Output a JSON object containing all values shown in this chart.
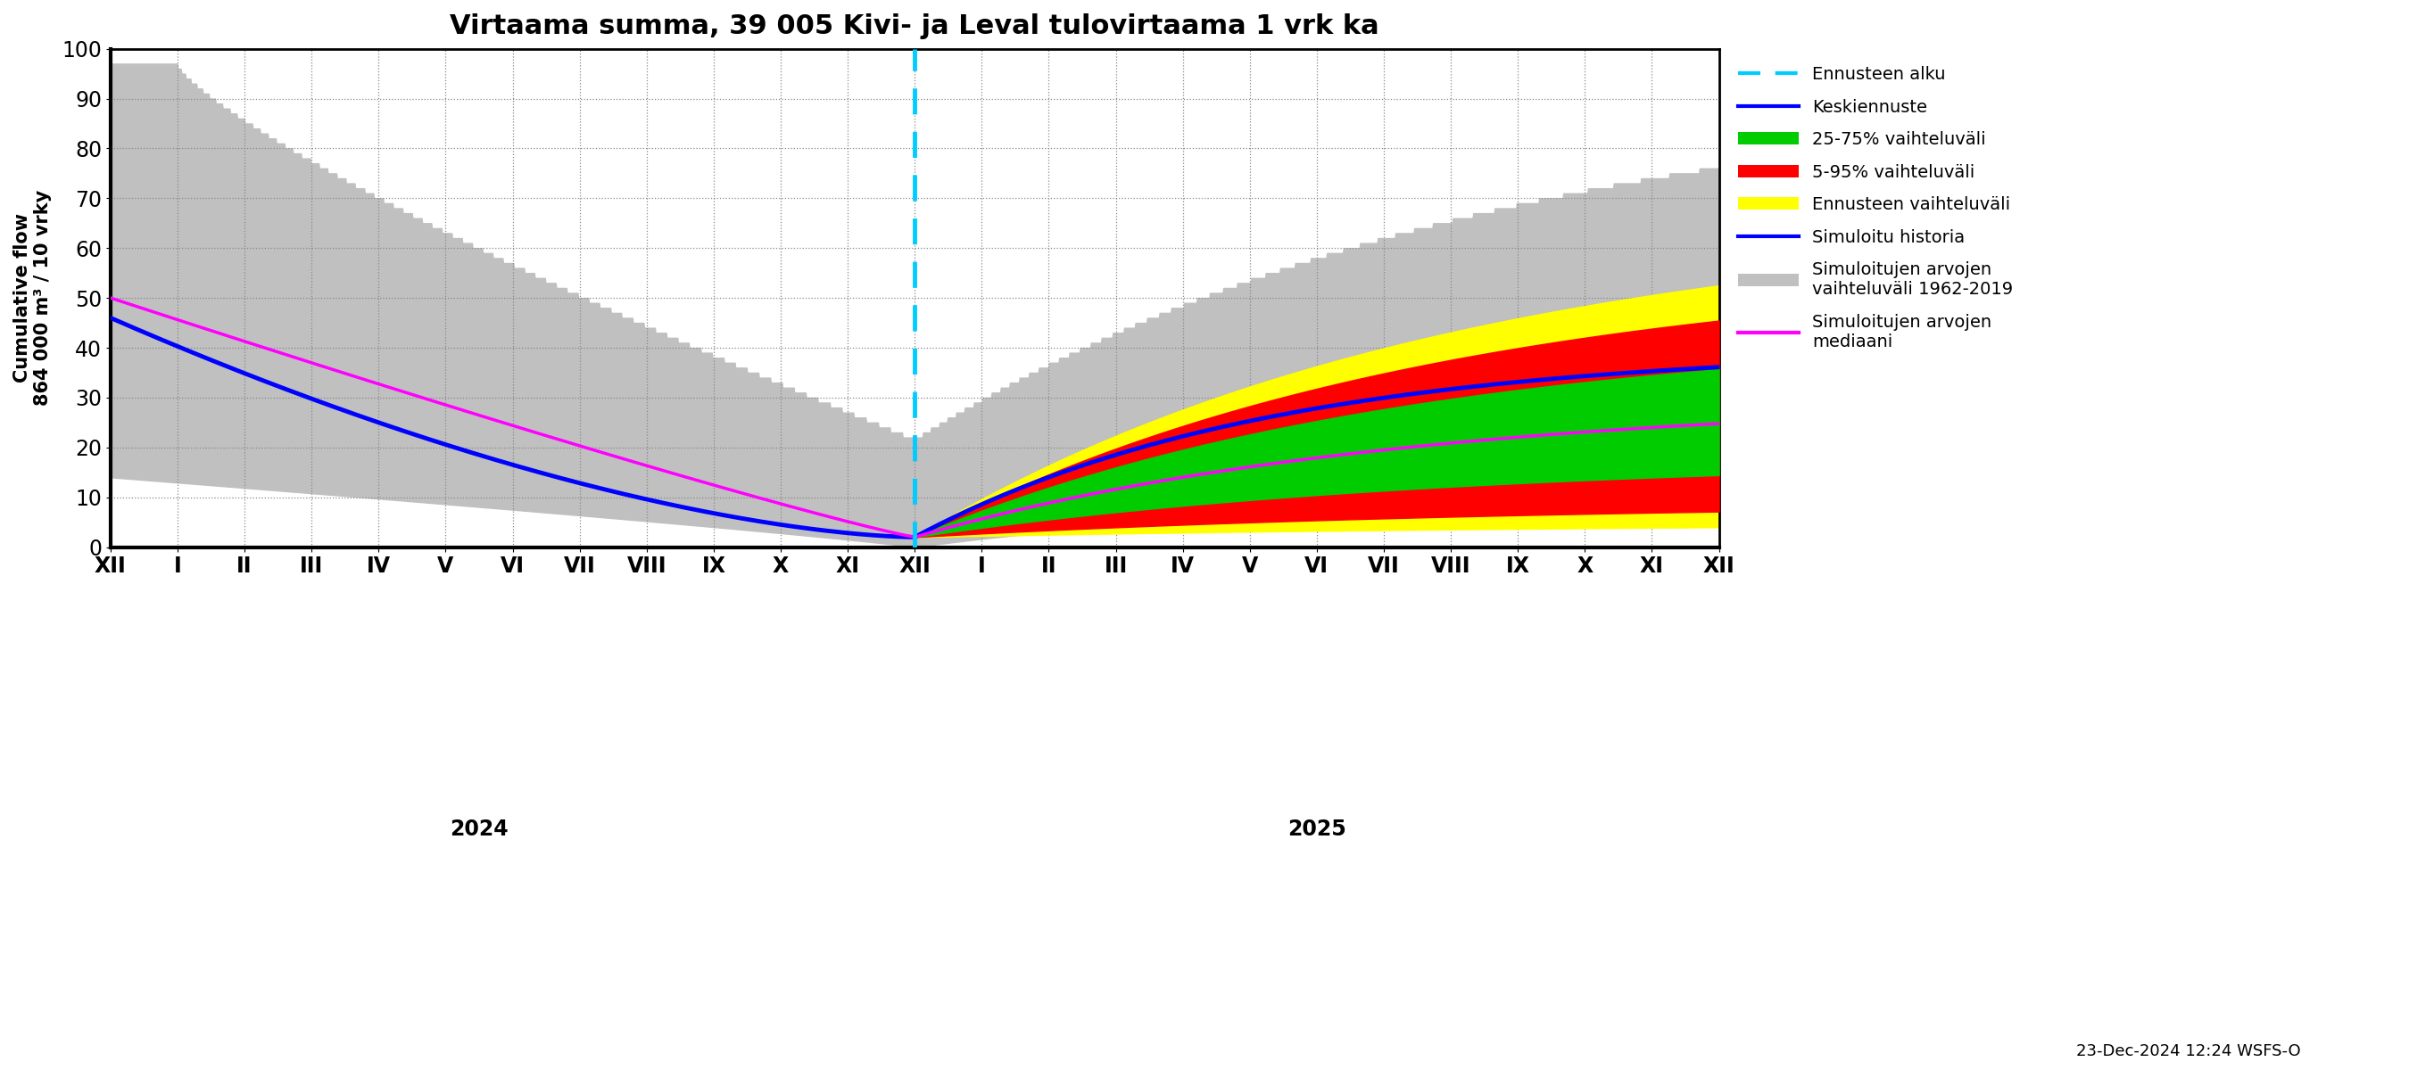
{
  "title": "Virtaama summa, 39 005 Kivi- ja Leval tulovirtaama 1 vrk ka",
  "ylabel": "Cumulative flow\n864 000 m³ / 10 vrky",
  "ylim": [
    0,
    100
  ],
  "background_color": "#ffffff",
  "month_labels": [
    "XII",
    "I",
    "II",
    "III",
    "IV",
    "V",
    "VI",
    "VII",
    "VIII",
    "IX",
    "X",
    "XI",
    "XII",
    "I",
    "II",
    "III",
    "IV",
    "V",
    "VI",
    "VII",
    "VIII",
    "IX",
    "X",
    "XI",
    "XII"
  ],
  "year_labels": [
    "2024",
    "2025"
  ],
  "timestamp": "23-Dec-2024 12:24 WSFS-O",
  "legend_labels": [
    "Ennusteen alku",
    "Keskiennuste",
    "25-75% vaihteluväli",
    "5-95% vaihteluväli",
    "Ennusteen vaihteluväli",
    "Simuloitu historia",
    "Simuloitujen arvojen\nvaihteluväli 1962-2019",
    "Simuloitujen arvojen\nmediaani"
  ]
}
